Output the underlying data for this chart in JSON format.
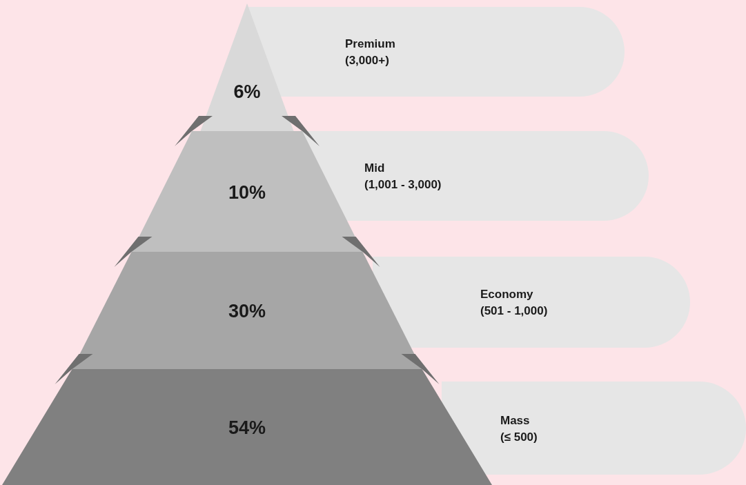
{
  "chart_data": {
    "type": "other",
    "categories": [
      "Premium\n(3,000+)",
      "Mid\n(1,001 - 3,000)",
      "Economy\n(501 - 1,000)",
      "Mass\n(≤ 500)"
    ],
    "values": [
      6,
      10,
      30,
      54
    ],
    "value_labels": [
      "6%",
      "10%",
      "30%",
      "54%"
    ],
    "data_labels": true
  }
}
